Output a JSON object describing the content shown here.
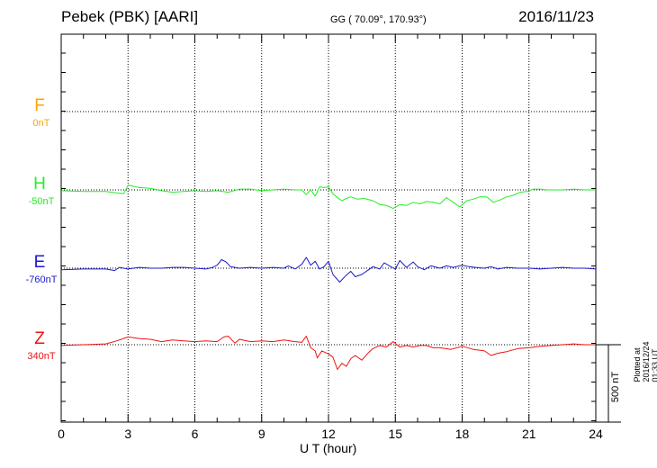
{
  "header": {
    "station": "Pebek (PBK)  [AARI]",
    "coords": "GG ( 70.09°, 170.93°)",
    "date": "2016/11/23"
  },
  "footer": {
    "plotted": "Plotted at 2016/12/24 01:33 UT"
  },
  "chart_data": {
    "type": "line",
    "xlabel": "U T (hour)",
    "xlim": [
      0,
      24
    ],
    "xticks": [
      "0",
      "3",
      "6",
      "9",
      "12",
      "15",
      "18",
      "21",
      "24"
    ],
    "grid": true,
    "scale_bar": {
      "label": "500 nT",
      "value_nT": 500
    },
    "components": [
      {
        "letter": "F",
        "baseline": "0nT",
        "color": "#ffa500",
        "values": []
      },
      {
        "letter": "H",
        "baseline": "-50nT",
        "color": "#22ee22",
        "x": [
          0,
          1,
          2,
          2.5,
          2.8,
          3,
          3.5,
          4,
          4.5,
          5,
          5.5,
          6,
          6.5,
          7,
          7.5,
          8,
          8.5,
          9,
          9.5,
          10,
          10.5,
          10.8,
          11,
          11.2,
          11.4,
          11.6,
          11.8,
          12,
          12.2,
          12.4,
          12.6,
          12.8,
          13,
          13.3,
          13.6,
          14,
          14.3,
          14.6,
          14.9,
          15.2,
          15.5,
          15.8,
          16.1,
          16.4,
          16.7,
          17,
          17.3,
          17.6,
          17.9,
          18.2,
          18.5,
          18.8,
          19.1,
          19.4,
          19.7,
          20,
          20.3,
          20.6,
          20.9,
          21.2,
          21.5,
          21.8,
          22,
          22.5,
          23,
          23.5,
          24
        ],
        "values": [
          -5,
          -10,
          -10,
          -20,
          -25,
          30,
          15,
          10,
          -5,
          -15,
          -10,
          -5,
          -10,
          -5,
          -15,
          5,
          5,
          -5,
          0,
          5,
          0,
          0,
          -30,
          0,
          -40,
          20,
          15,
          20,
          -25,
          -50,
          -70,
          -55,
          -45,
          -60,
          -55,
          -70,
          -95,
          -100,
          -120,
          -95,
          -100,
          -80,
          -90,
          -75,
          -80,
          -90,
          -50,
          -80,
          -110,
          -70,
          -60,
          -45,
          -45,
          -80,
          -65,
          -45,
          -35,
          -15,
          -10,
          5,
          5,
          0,
          0,
          0,
          5,
          0,
          0
        ]
      },
      {
        "letter": "E",
        "baseline": "-760nT",
        "color": "#1a1acc",
        "x": [
          0,
          1,
          2,
          2.4,
          2.6,
          3,
          3.5,
          4,
          4.5,
          5,
          5.5,
          6,
          6.5,
          6.8,
          7,
          7.2,
          7.4,
          7.6,
          8,
          8.5,
          9,
          9.5,
          10,
          10.2,
          10.5,
          10.8,
          11,
          11.2,
          11.4,
          11.6,
          11.8,
          12,
          12.2,
          12.5,
          12.8,
          13,
          13.2,
          13.5,
          13.8,
          14,
          14.3,
          14.5,
          14.8,
          15,
          15.2,
          15.5,
          15.8,
          16,
          16.3,
          16.6,
          17,
          17.3,
          17.6,
          18,
          18.3,
          18.6,
          19,
          19.3,
          19.6,
          20,
          20.5,
          21,
          21.5,
          22,
          22.5,
          23,
          23.5,
          24
        ],
        "values": [
          -10,
          -5,
          -5,
          -15,
          5,
          -5,
          5,
          0,
          0,
          5,
          5,
          0,
          -5,
          5,
          20,
          55,
          40,
          10,
          0,
          5,
          0,
          5,
          0,
          15,
          -5,
          25,
          70,
          20,
          45,
          -5,
          10,
          45,
          -40,
          -90,
          -45,
          -20,
          -55,
          -40,
          -10,
          10,
          -5,
          35,
          10,
          -5,
          50,
          5,
          40,
          10,
          -10,
          15,
          0,
          15,
          5,
          20,
          10,
          5,
          0,
          10,
          -5,
          5,
          0,
          0,
          -5,
          0,
          5,
          0,
          0,
          -5
        ]
      },
      {
        "letter": "Z",
        "baseline": "340nT",
        "color": "#ee1111",
        "x": [
          0,
          1,
          2,
          2.5,
          3,
          3.5,
          4,
          4.5,
          5,
          5.5,
          6,
          6.5,
          7,
          7.3,
          7.5,
          7.8,
          8,
          8.5,
          9,
          9.5,
          10,
          10.5,
          10.8,
          11,
          11.2,
          11.4,
          11.5,
          11.7,
          12,
          12.2,
          12.4,
          12.6,
          12.8,
          13,
          13.2,
          13.5,
          13.8,
          14,
          14.3,
          14.6,
          14.9,
          15.2,
          15.5,
          15.8,
          16.1,
          16.4,
          16.7,
          17,
          17.5,
          18,
          18.5,
          19,
          19.3,
          19.6,
          20,
          20.5,
          21,
          21.5,
          22,
          22.5,
          23,
          23.5,
          24
        ],
        "values": [
          -5,
          0,
          5,
          25,
          50,
          40,
          35,
          20,
          30,
          25,
          20,
          25,
          20,
          50,
          55,
          10,
          35,
          20,
          25,
          20,
          30,
          20,
          15,
          55,
          -20,
          -40,
          -85,
          -40,
          -60,
          -80,
          -160,
          -120,
          -140,
          -90,
          -70,
          -100,
          -50,
          -25,
          -5,
          -15,
          20,
          -15,
          -5,
          -15,
          -5,
          -5,
          -20,
          -20,
          -30,
          -10,
          -30,
          -40,
          -70,
          -55,
          -45,
          -25,
          -20,
          -10,
          -5,
          0,
          5,
          0,
          0
        ]
      }
    ]
  }
}
